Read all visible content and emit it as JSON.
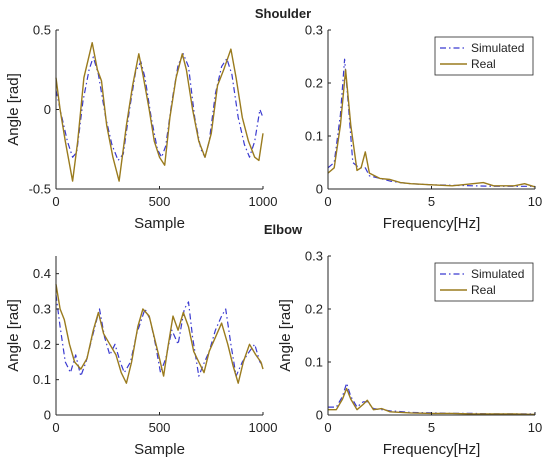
{
  "colors": {
    "simulated": "#3a3ad0",
    "real": "#9a7b1e"
  },
  "chart_data": [
    {
      "type": "line",
      "title": "Shoulder",
      "xlabel": "Sample",
      "ylabel": "Angle [rad]",
      "xlim": [
        0,
        1000
      ],
      "ylim": [
        -0.5,
        0.5
      ],
      "xticks": [
        0,
        500,
        1000
      ],
      "yticks": [
        -0.5,
        0,
        0.5
      ],
      "ytick_labels": [
        "-0.5",
        "0",
        "0.5"
      ],
      "series": [
        {
          "style": "dashdot",
          "color": "#3a3ad0",
          "points": [
            [
              0,
              0.12
            ],
            [
              25,
              -0.03
            ],
            [
              55,
              -0.2
            ],
            [
              80,
              -0.3
            ],
            [
              100,
              -0.27
            ],
            [
              130,
              0.05
            ],
            [
              160,
              0.25
            ],
            [
              180,
              0.33
            ],
            [
              205,
              0.22
            ],
            [
              240,
              -0.05
            ],
            [
              270,
              -0.22
            ],
            [
              300,
              -0.32
            ],
            [
              325,
              -0.28
            ],
            [
              355,
              0.0
            ],
            [
              385,
              0.24
            ],
            [
              410,
              0.3
            ],
            [
              430,
              0.2
            ],
            [
              460,
              -0.05
            ],
            [
              490,
              -0.25
            ],
            [
              510,
              -0.3
            ],
            [
              530,
              -0.23
            ],
            [
              560,
              0.05
            ],
            [
              590,
              0.28
            ],
            [
              615,
              0.35
            ],
            [
              640,
              0.27
            ],
            [
              670,
              -0.05
            ],
            [
              700,
              -0.25
            ],
            [
              720,
              -0.3
            ],
            [
              740,
              -0.2
            ],
            [
              770,
              0.1
            ],
            [
              800,
              0.27
            ],
            [
              825,
              0.32
            ],
            [
              850,
              0.22
            ],
            [
              880,
              -0.05
            ],
            [
              910,
              -0.22
            ],
            [
              935,
              -0.3
            ],
            [
              960,
              -0.2
            ],
            [
              985,
              0.0
            ],
            [
              1000,
              -0.05
            ]
          ]
        },
        {
          "style": "solid",
          "color": "#9a7b1e",
          "points": [
            [
              0,
              0.2
            ],
            [
              20,
              0.0
            ],
            [
              45,
              -0.2
            ],
            [
              80,
              -0.45
            ],
            [
              105,
              -0.2
            ],
            [
              135,
              0.2
            ],
            [
              175,
              0.42
            ],
            [
              200,
              0.25
            ],
            [
              220,
              0.18
            ],
            [
              245,
              -0.1
            ],
            [
              275,
              -0.3
            ],
            [
              305,
              -0.45
            ],
            [
              340,
              -0.1
            ],
            [
              370,
              0.15
            ],
            [
              400,
              0.35
            ],
            [
              420,
              0.22
            ],
            [
              450,
              0.0
            ],
            [
              475,
              -0.2
            ],
            [
              500,
              -0.3
            ],
            [
              525,
              -0.35
            ],
            [
              550,
              -0.05
            ],
            [
              580,
              0.2
            ],
            [
              610,
              0.35
            ],
            [
              630,
              0.25
            ],
            [
              660,
              0.0
            ],
            [
              690,
              -0.2
            ],
            [
              720,
              -0.3
            ],
            [
              750,
              -0.15
            ],
            [
              780,
              0.15
            ],
            [
              810,
              0.25
            ],
            [
              845,
              0.38
            ],
            [
              870,
              0.2
            ],
            [
              900,
              -0.05
            ],
            [
              930,
              -0.2
            ],
            [
              960,
              -0.3
            ],
            [
              980,
              -0.32
            ],
            [
              1000,
              -0.15
            ]
          ]
        }
      ]
    },
    {
      "type": "line",
      "title": "",
      "xlabel": "Frequency[Hz]",
      "ylabel": "",
      "xlim": [
        0,
        10
      ],
      "ylim": [
        0,
        0.3
      ],
      "xticks": [
        0,
        5,
        10
      ],
      "yticks": [
        0,
        0.1,
        0.2,
        0.3
      ],
      "ytick_labels": [
        "0",
        "0.1",
        "0.2",
        "0.3"
      ],
      "legend": {
        "placement": "top-right",
        "entries": [
          "Simulated",
          "Real"
        ]
      },
      "series": [
        {
          "name": "Simulated",
          "style": "dashdot",
          "color": "#3a3ad0",
          "points": [
            [
              0,
              0.04
            ],
            [
              0.3,
              0.05
            ],
            [
              0.6,
              0.14
            ],
            [
              0.8,
              0.245
            ],
            [
              1.0,
              0.15
            ],
            [
              1.2,
              0.05
            ],
            [
              1.5,
              0.04
            ],
            [
              1.8,
              0.04
            ],
            [
              2.0,
              0.025
            ],
            [
              2.5,
              0.02
            ],
            [
              3,
              0.015
            ],
            [
              3.5,
              0.012
            ],
            [
              4,
              0.01
            ],
            [
              5,
              0.008
            ],
            [
              6,
              0.007
            ],
            [
              7,
              0.006
            ],
            [
              8,
              0.005
            ],
            [
              9,
              0.005
            ],
            [
              10,
              0.005
            ]
          ]
        },
        {
          "name": "Real",
          "style": "solid",
          "color": "#9a7b1e",
          "points": [
            [
              0,
              0.03
            ],
            [
              0.3,
              0.04
            ],
            [
              0.6,
              0.12
            ],
            [
              0.85,
              0.225
            ],
            [
              1.1,
              0.12
            ],
            [
              1.4,
              0.035
            ],
            [
              1.6,
              0.04
            ],
            [
              1.8,
              0.07
            ],
            [
              2.0,
              0.03
            ],
            [
              2.5,
              0.02
            ],
            [
              3,
              0.018
            ],
            [
              3.5,
              0.012
            ],
            [
              4,
              0.01
            ],
            [
              5,
              0.008
            ],
            [
              6,
              0.006
            ],
            [
              7,
              0.01
            ],
            [
              7.5,
              0.012
            ],
            [
              8,
              0.006
            ],
            [
              9,
              0.006
            ],
            [
              9.5,
              0.01
            ],
            [
              10,
              0.004
            ]
          ]
        }
      ]
    },
    {
      "type": "line",
      "title": "Elbow",
      "xlabel": "Sample",
      "ylabel": "Angle [rad]",
      "xlim": [
        0,
        1000
      ],
      "ylim": [
        0,
        0.45
      ],
      "xticks": [
        0,
        500,
        1000
      ],
      "yticks": [
        0,
        0.1,
        0.2,
        0.3,
        0.4
      ],
      "ytick_labels": [
        "0",
        "0.1",
        "0.2",
        "0.3",
        "0.4"
      ],
      "series": [
        {
          "style": "dashdot",
          "color": "#3a3ad0",
          "points": [
            [
              0,
              0.34
            ],
            [
              20,
              0.25
            ],
            [
              45,
              0.15
            ],
            [
              70,
              0.12
            ],
            [
              95,
              0.17
            ],
            [
              120,
              0.11
            ],
            [
              145,
              0.15
            ],
            [
              175,
              0.22
            ],
            [
              210,
              0.3
            ],
            [
              235,
              0.22
            ],
            [
              260,
              0.17
            ],
            [
              285,
              0.2
            ],
            [
              310,
              0.15
            ],
            [
              330,
              0.12
            ],
            [
              360,
              0.15
            ],
            [
              390,
              0.23
            ],
            [
              430,
              0.3
            ],
            [
              455,
              0.27
            ],
            [
              480,
              0.2
            ],
            [
              505,
              0.12
            ],
            [
              530,
              0.16
            ],
            [
              560,
              0.24
            ],
            [
              590,
              0.2
            ],
            [
              620,
              0.3
            ],
            [
              640,
              0.32
            ],
            [
              660,
              0.22
            ],
            [
              690,
              0.11
            ],
            [
              710,
              0.14
            ],
            [
              740,
              0.18
            ],
            [
              770,
              0.24
            ],
            [
              800,
              0.28
            ],
            [
              820,
              0.3
            ],
            [
              845,
              0.2
            ],
            [
              870,
              0.11
            ],
            [
              900,
              0.15
            ],
            [
              935,
              0.18
            ],
            [
              960,
              0.2
            ],
            [
              985,
              0.15
            ],
            [
              1000,
              0.14
            ]
          ]
        },
        {
          "style": "solid",
          "color": "#9a7b1e",
          "points": [
            [
              0,
              0.37
            ],
            [
              20,
              0.3
            ],
            [
              40,
              0.27
            ],
            [
              65,
              0.2
            ],
            [
              90,
              0.15
            ],
            [
              120,
              0.13
            ],
            [
              150,
              0.16
            ],
            [
              180,
              0.24
            ],
            [
              205,
              0.29
            ],
            [
              230,
              0.23
            ],
            [
              260,
              0.2
            ],
            [
              290,
              0.17
            ],
            [
              315,
              0.12
            ],
            [
              340,
              0.09
            ],
            [
              365,
              0.15
            ],
            [
              395,
              0.25
            ],
            [
              420,
              0.3
            ],
            [
              450,
              0.28
            ],
            [
              475,
              0.22
            ],
            [
              500,
              0.16
            ],
            [
              520,
              0.11
            ],
            [
              540,
              0.19
            ],
            [
              565,
              0.28
            ],
            [
              590,
              0.24
            ],
            [
              615,
              0.29
            ],
            [
              640,
              0.25
            ],
            [
              665,
              0.18
            ],
            [
              690,
              0.15
            ],
            [
              715,
              0.12
            ],
            [
              740,
              0.18
            ],
            [
              770,
              0.22
            ],
            [
              800,
              0.26
            ],
            [
              830,
              0.2
            ],
            [
              855,
              0.14
            ],
            [
              880,
              0.09
            ],
            [
              905,
              0.15
            ],
            [
              935,
              0.2
            ],
            [
              965,
              0.17
            ],
            [
              990,
              0.15
            ],
            [
              1000,
              0.13
            ]
          ]
        }
      ]
    },
    {
      "type": "line",
      "title": "",
      "xlabel": "Frequency[Hz]",
      "ylabel": "Angle [rad]",
      "xlim": [
        0,
        10
      ],
      "ylim": [
        0,
        0.3
      ],
      "xticks": [
        0,
        5,
        10
      ],
      "yticks": [
        0,
        0.1,
        0.2,
        0.3
      ],
      "ytick_labels": [
        "0",
        "0.1",
        "0.2",
        "0.3"
      ],
      "legend": {
        "placement": "top-right",
        "entries": [
          "Simulated",
          "Real"
        ]
      },
      "series": [
        {
          "name": "Simulated",
          "style": "dashdot",
          "color": "#3a3ad0",
          "points": [
            [
              0,
              0.015
            ],
            [
              0.4,
              0.015
            ],
            [
              0.7,
              0.035
            ],
            [
              0.9,
              0.06
            ],
            [
              1.1,
              0.035
            ],
            [
              1.4,
              0.015
            ],
            [
              1.7,
              0.025
            ],
            [
              1.9,
              0.025
            ],
            [
              2.2,
              0.012
            ],
            [
              2.6,
              0.01
            ],
            [
              3,
              0.008
            ],
            [
              4,
              0.005
            ],
            [
              5,
              0.004
            ],
            [
              6,
              0.003
            ],
            [
              7,
              0.003
            ],
            [
              8,
              0.002
            ],
            [
              9,
              0.002
            ],
            [
              10,
              0.002
            ]
          ]
        },
        {
          "name": "Real",
          "style": "solid",
          "color": "#9a7b1e",
          "points": [
            [
              0,
              0.01
            ],
            [
              0.4,
              0.01
            ],
            [
              0.7,
              0.03
            ],
            [
              0.9,
              0.05
            ],
            [
              1.1,
              0.03
            ],
            [
              1.4,
              0.01
            ],
            [
              1.7,
              0.02
            ],
            [
              1.9,
              0.028
            ],
            [
              2.2,
              0.01
            ],
            [
              2.6,
              0.012
            ],
            [
              3,
              0.006
            ],
            [
              4,
              0.004
            ],
            [
              5,
              0.003
            ],
            [
              6,
              0.003
            ],
            [
              7,
              0.002
            ],
            [
              8,
              0.002
            ],
            [
              9,
              0.002
            ],
            [
              10,
              0.001
            ]
          ]
        }
      ]
    }
  ]
}
